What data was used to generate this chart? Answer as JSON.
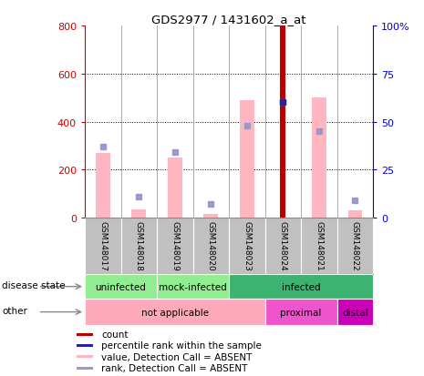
{
  "title": "GDS2977 / 1431602_a_at",
  "samples": [
    "GSM148017",
    "GSM148018",
    "GSM148019",
    "GSM148020",
    "GSM148023",
    "GSM148024",
    "GSM148021",
    "GSM148022"
  ],
  "pink_bar_values": [
    270,
    35,
    250,
    15,
    490,
    0,
    500,
    30
  ],
  "light_blue_values": [
    37,
    11,
    34,
    7,
    48,
    60,
    45,
    9
  ],
  "red_bar_index": 5,
  "red_bar_value": 800,
  "dark_blue_index": 5,
  "dark_blue_value": 60,
  "ylim_left": [
    0,
    800
  ],
  "ylim_right": [
    0,
    100
  ],
  "yticks_left": [
    0,
    200,
    400,
    600,
    800
  ],
  "yticks_right": [
    0,
    25,
    50,
    75,
    100
  ],
  "disease_segments": [
    {
      "label": "uninfected",
      "start": 0,
      "end": 2,
      "color": "#90EE90"
    },
    {
      "label": "mock-infected",
      "start": 2,
      "end": 4,
      "color": "#90EE90"
    },
    {
      "label": "infected",
      "start": 4,
      "end": 8,
      "color": "#3CB371"
    }
  ],
  "other_segments": [
    {
      "label": "not applicable",
      "start": 0,
      "end": 5,
      "color": "#FFAABB"
    },
    {
      "label": "proximal",
      "start": 5,
      "end": 7,
      "color": "#EE55CC"
    },
    {
      "label": "distal",
      "start": 7,
      "end": 8,
      "color": "#CC00BB"
    }
  ],
  "pink_color": "#FFB6C1",
  "red_color": "#BB0000",
  "dark_blue_color": "#2222AA",
  "light_blue_color": "#9999CC",
  "axis_color_left": "#CC0000",
  "axis_color_right": "#0000CC",
  "grid_color": "black",
  "sample_bg_color": "#C0C0C0",
  "legend_items": [
    {
      "color": "#BB0000",
      "label": "count"
    },
    {
      "color": "#2222AA",
      "label": "percentile rank within the sample"
    },
    {
      "color": "#FFB6C1",
      "label": "value, Detection Call = ABSENT"
    },
    {
      "color": "#9999CC",
      "label": "rank, Detection Call = ABSENT"
    }
  ]
}
